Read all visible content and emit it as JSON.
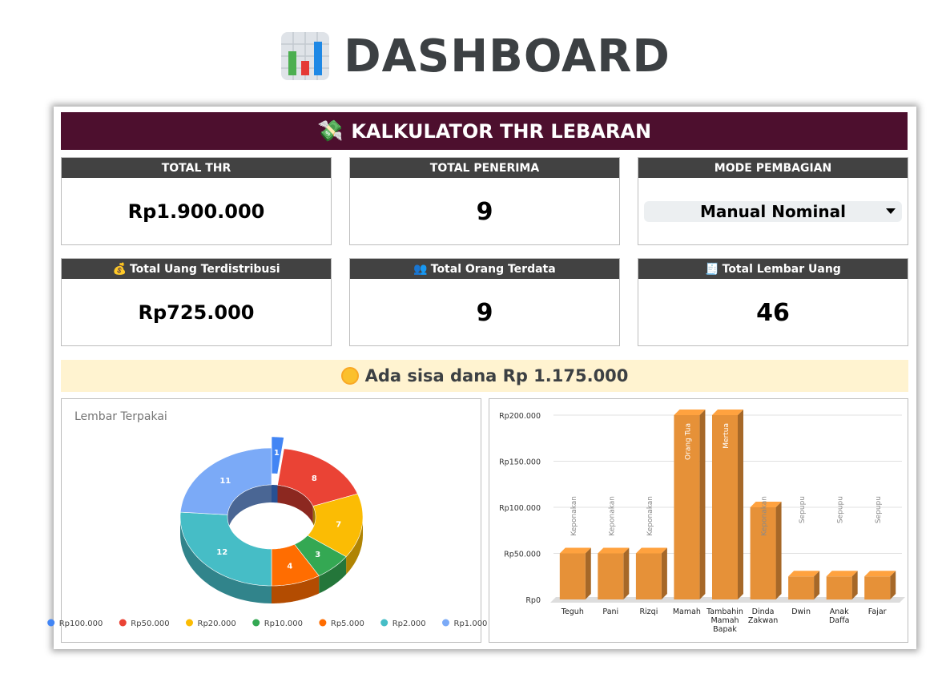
{
  "page": {
    "title": "DASHBOARD",
    "title_icon": "bar-chart-icon"
  },
  "banner": {
    "icon": "money-with-wings-icon",
    "title": "KALKULATOR THR LEBARAN"
  },
  "cards": {
    "total_thr": {
      "label": "TOTAL THR",
      "value": "Rp1.900.000"
    },
    "total_penerima": {
      "label": "TOTAL PENERIMA",
      "value": "9"
    },
    "mode_pembagian": {
      "label": "MODE PEMBAGIAN",
      "value": "Manual Nominal"
    },
    "total_uang": {
      "icon": "💰",
      "label": "Total Uang Terdistribusi",
      "value": "Rp725.000"
    },
    "total_orang": {
      "icon": "👥",
      "label": "Total Orang Terdata",
      "value": "9"
    },
    "total_lembar": {
      "icon": "🧾",
      "label": "Total Lembar Uang",
      "value": "46"
    }
  },
  "notice": {
    "icon": "coin-icon",
    "text": "Ada sisa dana Rp 1.175.000"
  },
  "chart_data": [
    {
      "type": "pie",
      "title": "Lembar Terpakai",
      "legend_position": "bottom",
      "slices": [
        {
          "label": "Rp100.000",
          "value": 1,
          "color": "#4285f4"
        },
        {
          "label": "Rp50.000",
          "value": 8,
          "color": "#ea4335"
        },
        {
          "label": "Rp20.000",
          "value": 7,
          "color": "#fbbc04"
        },
        {
          "label": "Rp10.000",
          "value": 3,
          "color": "#34a853"
        },
        {
          "label": "Rp5.000",
          "value": 4,
          "color": "#ff6d01"
        },
        {
          "label": "Rp2.000",
          "value": 12,
          "color": "#46bdc6"
        },
        {
          "label": "Rp1.000",
          "value": 11,
          "color": "#7baaf7"
        }
      ]
    },
    {
      "type": "bar",
      "title": "",
      "xlabel": "",
      "ylabel": "",
      "ylim": [
        0,
        200000
      ],
      "yticks": [
        "Rp0",
        "Rp50.000",
        "Rp100.000",
        "Rp150.000",
        "Rp200.000"
      ],
      "grid": true,
      "color": "#e69138",
      "categories": [
        [
          "Teguh"
        ],
        [
          "Pani"
        ],
        [
          "Rizqi"
        ],
        [
          "Mamah"
        ],
        [
          "Tambahin",
          "Mamah",
          "Bapak"
        ],
        [
          "Dinda",
          "Zakwan"
        ],
        [
          "Dwin"
        ],
        [
          "Anak",
          "Daffa"
        ],
        [
          "Fajar"
        ]
      ],
      "values": [
        50000,
        50000,
        50000,
        200000,
        200000,
        100000,
        25000,
        25000,
        25000
      ],
      "annotations": [
        "Keponakan",
        "Keponakan",
        "Keponakan",
        "Orang Tua",
        "Mertua",
        "Keponakan",
        "Sepupu",
        "Sepupu",
        "Sepupu"
      ]
    }
  ]
}
